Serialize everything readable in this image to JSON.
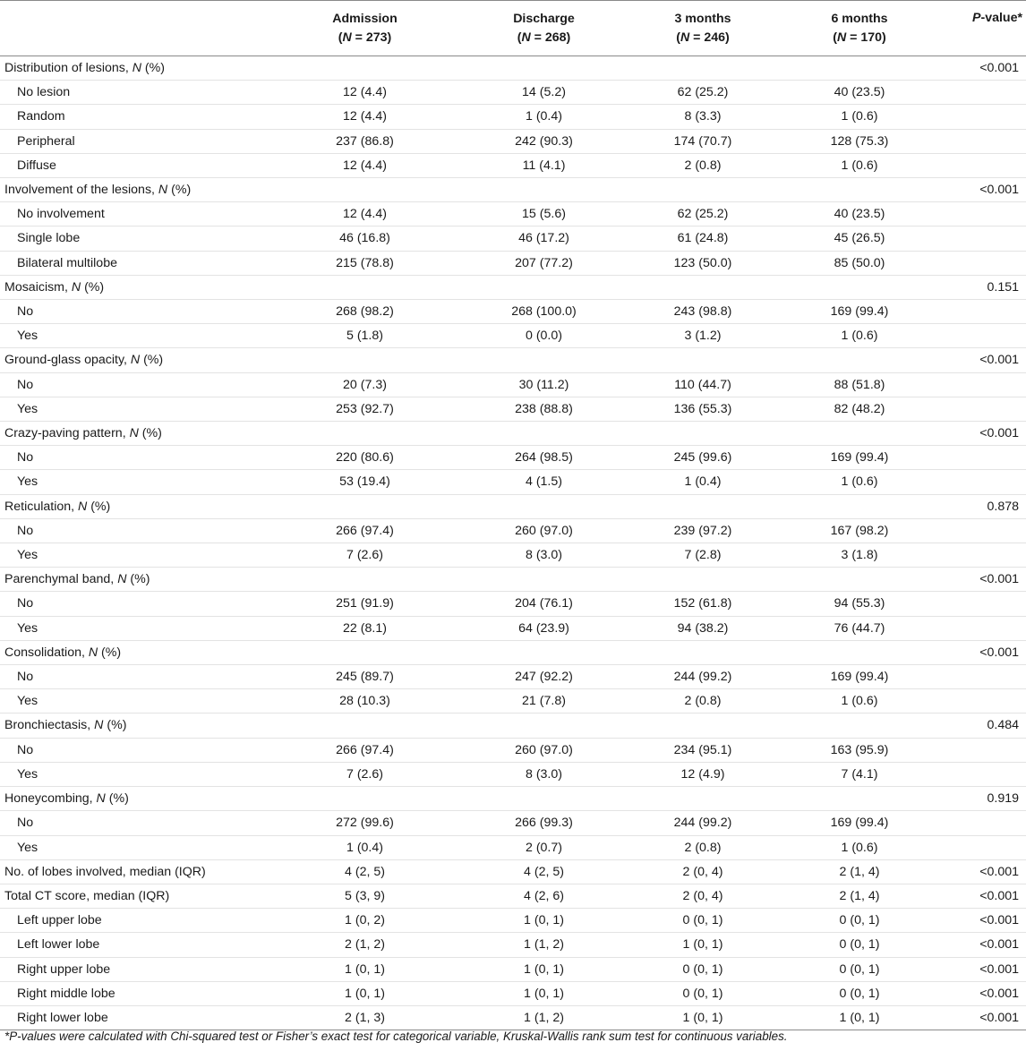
{
  "columns": [
    {
      "name": "Admission",
      "n_label": "N",
      "n_value": "= 273)"
    },
    {
      "name": "Discharge",
      "n_label": "N",
      "n_value": "= 268)"
    },
    {
      "name": "3 months",
      "n_label": "N",
      "n_value": "= 246)"
    },
    {
      "name": "6 months",
      "n_label": "N",
      "n_value": "= 170)"
    }
  ],
  "pvalue_header": {
    "italic": "P",
    "rest": "-value*"
  },
  "rows": [
    {
      "sub": false,
      "label": "Distribution of lesions, ",
      "n": "N",
      "suffix": " (%)",
      "vals": [
        "",
        "",
        "",
        ""
      ],
      "p": "<0.001"
    },
    {
      "sub": true,
      "label": "No lesion",
      "vals": [
        "12 (4.4)",
        "14 (5.2)",
        "62 (25.2)",
        "40 (23.5)"
      ],
      "p": ""
    },
    {
      "sub": true,
      "label": "Random",
      "vals": [
        "12 (4.4)",
        "1 (0.4)",
        "8 (3.3)",
        "1 (0.6)"
      ],
      "p": ""
    },
    {
      "sub": true,
      "label": "Peripheral",
      "vals": [
        "237 (86.8)",
        "242 (90.3)",
        "174 (70.7)",
        "128 (75.3)"
      ],
      "p": ""
    },
    {
      "sub": true,
      "label": "Diffuse",
      "vals": [
        "12 (4.4)",
        "11 (4.1)",
        "2 (0.8)",
        "1 (0.6)"
      ],
      "p": ""
    },
    {
      "sub": false,
      "label": "Involvement of the lesions, ",
      "n": "N",
      "suffix": " (%)",
      "vals": [
        "",
        "",
        "",
        ""
      ],
      "p": "<0.001"
    },
    {
      "sub": true,
      "label": "No involvement",
      "vals": [
        "12 (4.4)",
        "15 (5.6)",
        "62 (25.2)",
        "40 (23.5)"
      ],
      "p": ""
    },
    {
      "sub": true,
      "label": "Single lobe",
      "vals": [
        "46 (16.8)",
        "46 (17.2)",
        "61 (24.8)",
        "45 (26.5)"
      ],
      "p": ""
    },
    {
      "sub": true,
      "label": "Bilateral multilobe",
      "vals": [
        "215 (78.8)",
        "207 (77.2)",
        "123 (50.0)",
        "85 (50.0)"
      ],
      "p": ""
    },
    {
      "sub": false,
      "label": "Mosaicism, ",
      "n": "N",
      "suffix": " (%)",
      "vals": [
        "",
        "",
        "",
        ""
      ],
      "p": "0.151"
    },
    {
      "sub": true,
      "label": "No",
      "vals": [
        "268 (98.2)",
        "268 (100.0)",
        "243 (98.8)",
        "169 (99.4)"
      ],
      "p": ""
    },
    {
      "sub": true,
      "label": "Yes",
      "vals": [
        "5 (1.8)",
        "0 (0.0)",
        "3 (1.2)",
        "1 (0.6)"
      ],
      "p": ""
    },
    {
      "sub": false,
      "label": "Ground-glass opacity, ",
      "n": "N",
      "suffix": " (%)",
      "vals": [
        "",
        "",
        "",
        ""
      ],
      "p": "<0.001"
    },
    {
      "sub": true,
      "label": "No",
      "vals": [
        "20 (7.3)",
        "30 (11.2)",
        "110 (44.7)",
        "88 (51.8)"
      ],
      "p": ""
    },
    {
      "sub": true,
      "label": "Yes",
      "vals": [
        "253 (92.7)",
        "238 (88.8)",
        "136 (55.3)",
        "82 (48.2)"
      ],
      "p": ""
    },
    {
      "sub": false,
      "label": "Crazy-paving pattern, ",
      "n": "N",
      "suffix": " (%)",
      "vals": [
        "",
        "",
        "",
        ""
      ],
      "p": "<0.001"
    },
    {
      "sub": true,
      "label": "No",
      "vals": [
        "220 (80.6)",
        "264 (98.5)",
        "245 (99.6)",
        "169 (99.4)"
      ],
      "p": ""
    },
    {
      "sub": true,
      "label": "Yes",
      "vals": [
        "53 (19.4)",
        "4 (1.5)",
        "1 (0.4)",
        "1 (0.6)"
      ],
      "p": ""
    },
    {
      "sub": false,
      "label": "Reticulation, ",
      "n": "N",
      "suffix": " (%)",
      "vals": [
        "",
        "",
        "",
        ""
      ],
      "p": "0.878"
    },
    {
      "sub": true,
      "label": "No",
      "vals": [
        "266 (97.4)",
        "260 (97.0)",
        "239 (97.2)",
        "167 (98.2)"
      ],
      "p": ""
    },
    {
      "sub": true,
      "label": "Yes",
      "vals": [
        "7 (2.6)",
        "8 (3.0)",
        "7 (2.8)",
        "3 (1.8)"
      ],
      "p": ""
    },
    {
      "sub": false,
      "label": "Parenchymal band, ",
      "n": "N",
      "suffix": " (%)",
      "vals": [
        "",
        "",
        "",
        ""
      ],
      "p": "<0.001"
    },
    {
      "sub": true,
      "label": "No",
      "vals": [
        "251 (91.9)",
        "204 (76.1)",
        "152 (61.8)",
        "94 (55.3)"
      ],
      "p": ""
    },
    {
      "sub": true,
      "label": "Yes",
      "vals": [
        "22 (8.1)",
        "64 (23.9)",
        "94 (38.2)",
        "76 (44.7)"
      ],
      "p": ""
    },
    {
      "sub": false,
      "label": "Consolidation, ",
      "n": "N",
      "suffix": " (%)",
      "vals": [
        "",
        "",
        "",
        ""
      ],
      "p": "<0.001"
    },
    {
      "sub": true,
      "label": "No",
      "vals": [
        "245 (89.7)",
        "247 (92.2)",
        "244 (99.2)",
        "169 (99.4)"
      ],
      "p": ""
    },
    {
      "sub": true,
      "label": "Yes",
      "vals": [
        "28 (10.3)",
        "21 (7.8)",
        "2 (0.8)",
        "1 (0.6)"
      ],
      "p": ""
    },
    {
      "sub": false,
      "label": "Bronchiectasis, ",
      "n": "N",
      "suffix": " (%)",
      "vals": [
        "",
        "",
        "",
        ""
      ],
      "p": "0.484"
    },
    {
      "sub": true,
      "label": "No",
      "vals": [
        "266 (97.4)",
        "260 (97.0)",
        "234 (95.1)",
        "163 (95.9)"
      ],
      "p": ""
    },
    {
      "sub": true,
      "label": "Yes",
      "vals": [
        "7 (2.6)",
        "8 (3.0)",
        "12 (4.9)",
        "7 (4.1)"
      ],
      "p": ""
    },
    {
      "sub": false,
      "label": "Honeycombing, ",
      "n": "N",
      "suffix": " (%)",
      "vals": [
        "",
        "",
        "",
        ""
      ],
      "p": "0.919"
    },
    {
      "sub": true,
      "label": "No",
      "vals": [
        "272 (99.6)",
        "266 (99.3)",
        "244 (99.2)",
        "169 (99.4)"
      ],
      "p": ""
    },
    {
      "sub": true,
      "label": "Yes",
      "vals": [
        "1 (0.4)",
        "2 (0.7)",
        "2 (0.8)",
        "1 (0.6)"
      ],
      "p": ""
    },
    {
      "sub": false,
      "label": "No. of lobes involved, median (IQR)",
      "vals": [
        "4 (2, 5)",
        "4 (2, 5)",
        "2 (0, 4)",
        "2 (1, 4)"
      ],
      "p": "<0.001"
    },
    {
      "sub": false,
      "label": "Total CT score, median (IQR)",
      "vals": [
        "5 (3, 9)",
        "4 (2, 6)",
        "2 (0, 4)",
        "2 (1, 4)"
      ],
      "p": "<0.001"
    },
    {
      "sub": true,
      "label": "Left upper lobe",
      "vals": [
        "1 (0, 2)",
        "1 (0, 1)",
        "0 (0, 1)",
        "0 (0, 1)"
      ],
      "p": "<0.001"
    },
    {
      "sub": true,
      "label": "Left lower lobe",
      "vals": [
        "2 (1, 2)",
        "1 (1, 2)",
        "1 (0, 1)",
        "0 (0, 1)"
      ],
      "p": "<0.001"
    },
    {
      "sub": true,
      "label": "Right upper lobe",
      "vals": [
        "1 (0, 1)",
        "1 (0, 1)",
        "0 (0, 1)",
        "0 (0, 1)"
      ],
      "p": "<0.001"
    },
    {
      "sub": true,
      "label": "Right middle lobe",
      "vals": [
        "1 (0, 1)",
        "1 (0, 1)",
        "0 (0, 1)",
        "0 (0, 1)"
      ],
      "p": "<0.001"
    },
    {
      "sub": true,
      "label": "Right lower lobe",
      "vals": [
        "2 (1, 3)",
        "1 (1, 2)",
        "1 (0, 1)",
        "1 (0, 1)"
      ],
      "p": "<0.001"
    }
  ],
  "footnote": "*P-values were calculated with Chi-squared test or Fisher’s exact test for categorical variable, Kruskal-Wallis rank sum test for continuous variables."
}
